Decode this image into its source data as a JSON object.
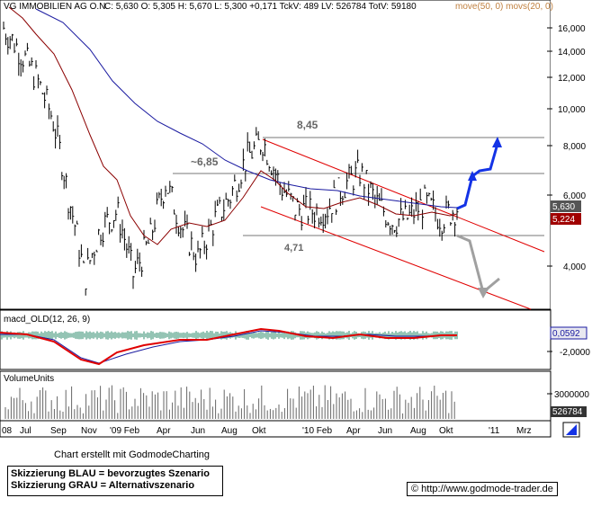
{
  "header": {
    "instrument": "VG IMMOBILIEN AG O.N.",
    "quote": "C: 5,630  O: 5,305  H: 5,670  L: 5,300  +0,171  TckV: 489  LV: 526784  TotV: 59180",
    "ma_labels": "move(50, 0)  movs(20, 0)"
  },
  "price_axis": {
    "ticks": [
      "16,000",
      "14,000",
      "12,000",
      "10,000",
      "8,000",
      "6,000",
      "4,000"
    ],
    "last_price": "5,630",
    "ma_value": "5,224"
  },
  "annotations": {
    "resistance_high": "8,45",
    "resistance_mid": "~6,85",
    "support": "4,71"
  },
  "macd": {
    "title": "macd_OLD(12, 26, 9)",
    "value": "0,0592",
    "tick": "-2,0000"
  },
  "volume": {
    "title": "VolumeUnits",
    "tick": "3000000",
    "value": "526784"
  },
  "time_axis": [
    "08",
    "Jul",
    "Sep",
    "Nov",
    "'09 Feb",
    "Apr",
    "Jun",
    "Aug",
    "Okt",
    "'10 Feb",
    "Apr",
    "Jun",
    "Aug",
    "Okt",
    "'11",
    "Mrz"
  ],
  "footer": {
    "credit": "Chart erstellt mit GodmodeCharting",
    "legend_blue": "Skizzierung BLAU = bevorzugtes Szenario",
    "legend_grey": "Skizzierung GRAU = Alternativszenario",
    "url": "http://www.godmode-trader.de"
  },
  "colors": {
    "price_bars": "#000000",
    "ma_short": "#8b0000",
    "ma_long": "#1a1aa0",
    "channel": "#e00000",
    "blue_scenario": "#1433e6",
    "grey_scenario": "#a0a0a0",
    "macd_line": "#e00000",
    "signal_line": "#1a1aa0"
  },
  "chart_data": {
    "type": "ohlc",
    "ylim": [
      3.4,
      16.8
    ],
    "y_scale": "log",
    "close_approx": [
      [
        "2008-06",
        16.0
      ],
      [
        "2008-07",
        14.0
      ],
      [
        "2008-08",
        12.0
      ],
      [
        "2008-09",
        9.5
      ],
      [
        "2008-10",
        6.0
      ],
      [
        "2008-11",
        3.7
      ],
      [
        "2008-12",
        5.0
      ],
      [
        "2009-01",
        5.5
      ],
      [
        "2009-02",
        3.8
      ],
      [
        "2009-03",
        4.6
      ],
      [
        "2009-04",
        6.5
      ],
      [
        "2009-05",
        5.0
      ],
      [
        "2009-06",
        4.2
      ],
      [
        "2009-07",
        5.2
      ],
      [
        "2009-08",
        6.0
      ],
      [
        "2009-09",
        7.5
      ],
      [
        "2009-10",
        8.3
      ],
      [
        "2009-11",
        6.5
      ],
      [
        "2009-12",
        5.6
      ],
      [
        "2010-01",
        5.5
      ],
      [
        "2010-02",
        5.6
      ],
      [
        "2010-03",
        6.4
      ],
      [
        "2010-04",
        6.9
      ],
      [
        "2010-05",
        5.8
      ],
      [
        "2010-06",
        5.2
      ],
      [
        "2010-07",
        5.3
      ],
      [
        "2010-08",
        5.8
      ],
      [
        "2010-09",
        5.3
      ],
      [
        "2010-10",
        5.63
      ]
    ],
    "levels": [
      8.45,
      6.85,
      4.71
    ]
  }
}
